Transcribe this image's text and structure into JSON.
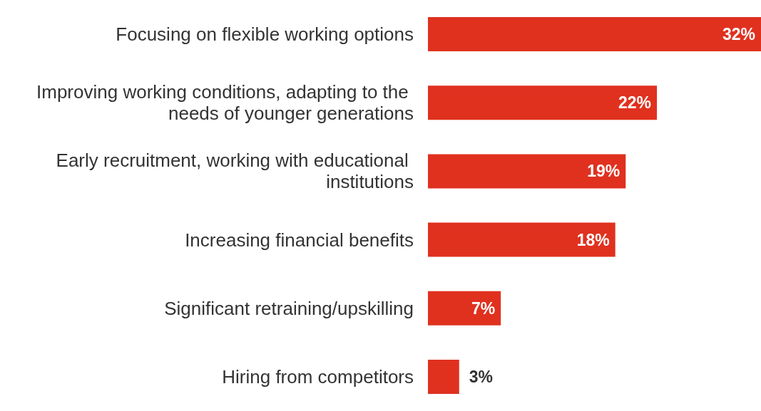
{
  "chart_data": {
    "type": "bar",
    "orientation": "horizontal",
    "categories": [
      "Focusing on flexible working options",
      "Improving working conditions, adapting to the needs of younger generations",
      "Early recruitment, working with educational institutions",
      "Increasing financial benefits",
      "Significant retraining/upskilling",
      "Hiring from competitors"
    ],
    "values": [
      32,
      22,
      19,
      18,
      7,
      3
    ],
    "value_labels": [
      "32%",
      "22%",
      "19%",
      "18%",
      "7%",
      "3%"
    ],
    "color": "#e0311f"
  }
}
